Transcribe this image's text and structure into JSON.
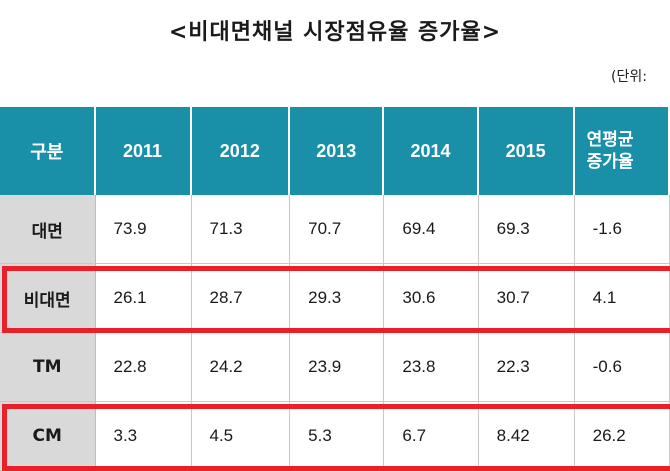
{
  "title": "<비대면채널 시장점유율 증가율>",
  "unit_label": "(단위:",
  "chart_data": {
    "type": "table",
    "title": "<비대면채널 시장점유율 증가율>",
    "columns": [
      "구분",
      "2011",
      "2012",
      "2013",
      "2014",
      "2015",
      "연평균 증가율"
    ],
    "column_display": {
      "last_line1": "연평균",
      "last_line2": "증가율"
    },
    "rows": [
      {
        "label": "대면",
        "values": [
          "73.9",
          "71.3",
          "70.7",
          "69.4",
          "69.3",
          "-1.6"
        ],
        "highlighted": false
      },
      {
        "label": "비대면",
        "values": [
          "26.1",
          "28.7",
          "29.3",
          "30.6",
          "30.7",
          "4.1"
        ],
        "highlighted": true
      },
      {
        "label": "TM",
        "values": [
          "22.8",
          "24.2",
          "23.9",
          "23.8",
          "22.3",
          "-0.6"
        ],
        "highlighted": false
      },
      {
        "label": "CM",
        "values": [
          "3.3",
          "4.5",
          "5.3",
          "6.7",
          "8.42",
          "26.2"
        ],
        "highlighted": true
      }
    ]
  },
  "colors": {
    "header_bg": "#1a8fa8",
    "label_bg": "#d9d9d9",
    "highlight": "#e8202a"
  }
}
